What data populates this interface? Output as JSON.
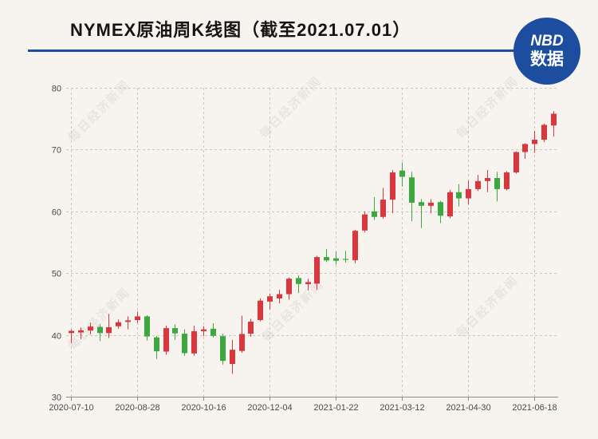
{
  "colors": {
    "background": "#f7f3ee",
    "brand_blue": "#1c4d9e",
    "up_candle": "#d9363e",
    "down_candle": "#3da83f",
    "grid": "#cdc7bf",
    "axis": "#8e8a85"
  },
  "logo": {
    "line1": "NBD",
    "line2": "数据"
  },
  "watermark": "每日经济新闻",
  "chart_data": {
    "type": "bar",
    "variant": "candlestick",
    "title": "NYMEX原油周K线图（截至2021.07.01）",
    "x": [
      "2020-07-10",
      "2020-07-17",
      "2020-07-24",
      "2020-07-31",
      "2020-08-07",
      "2020-08-14",
      "2020-08-21",
      "2020-08-28",
      "2020-09-04",
      "2020-09-11",
      "2020-09-18",
      "2020-09-25",
      "2020-10-02",
      "2020-10-09",
      "2020-10-16",
      "2020-10-23",
      "2020-10-30",
      "2020-11-06",
      "2020-11-13",
      "2020-11-20",
      "2020-11-27",
      "2020-12-04",
      "2020-12-11",
      "2020-12-18",
      "2020-12-24",
      "2020-12-31",
      "2021-01-08",
      "2021-01-15",
      "2021-01-22",
      "2021-01-29",
      "2021-02-05",
      "2021-02-12",
      "2021-02-19",
      "2021-02-26",
      "2021-03-05",
      "2021-03-12",
      "2021-03-19",
      "2021-03-26",
      "2021-04-01",
      "2021-04-09",
      "2021-04-16",
      "2021-04-23",
      "2021-04-30",
      "2021-05-07",
      "2021-05-14",
      "2021-05-21",
      "2021-05-28",
      "2021-06-04",
      "2021-06-11",
      "2021-06-18",
      "2021-06-25",
      "2021-07-01"
    ],
    "open": [
      40.3,
      40.4,
      40.7,
      41.3,
      40.3,
      41.4,
      42.1,
      42.4,
      43.0,
      39.6,
      37.3,
      41.1,
      40.2,
      37.0,
      40.6,
      41.0,
      39.8,
      35.3,
      37.4,
      40.2,
      42.4,
      45.4,
      45.9,
      46.6,
      49.2,
      48.2,
      48.3,
      52.6,
      52.4,
      52.3,
      52.1,
      56.9,
      60.0,
      59.1,
      61.9,
      66.6,
      65.5,
      61.5,
      60.9,
      61.5,
      59.2,
      63.1,
      62.1,
      63.6,
      64.9,
      65.4,
      63.6,
      66.3,
      69.6,
      70.9,
      71.6,
      73.9
    ],
    "high": [
      40.9,
      41.2,
      42.0,
      41.7,
      43.4,
      42.5,
      43.0,
      43.8,
      43.2,
      39.8,
      41.5,
      41.7,
      40.9,
      41.5,
      41.4,
      41.9,
      40.2,
      39.2,
      43.1,
      42.6,
      45.9,
      46.7,
      47.3,
      49.3,
      49.6,
      49.1,
      52.8,
      53.9,
      53.5,
      53.6,
      57.0,
      60.0,
      62.3,
      63.8,
      66.7,
      67.9,
      66.4,
      62.0,
      62.0,
      61.7,
      63.5,
      64.4,
      65.0,
      65.9,
      66.7,
      66.4,
      66.5,
      69.7,
      71.0,
      73.0,
      74.2,
      76.2
    ],
    "low": [
      38.7,
      39.3,
      40.1,
      39.0,
      39.5,
      41.0,
      40.9,
      41.9,
      39.1,
      36.1,
      36.8,
      39.2,
      36.6,
      36.6,
      39.8,
      39.6,
      35.2,
      33.7,
      37.1,
      39.7,
      42.2,
      44.1,
      45.1,
      45.7,
      46.8,
      47.2,
      47.3,
      51.8,
      51.4,
      51.7,
      51.6,
      56.6,
      58.6,
      58.8,
      59.7,
      64.0,
      58.4,
      57.3,
      59.7,
      58.1,
      58.9,
      60.8,
      61.1,
      63.3,
      63.1,
      61.6,
      63.4,
      66.1,
      68.5,
      69.5,
      71.2,
      72.1
    ],
    "close": [
      40.65,
      40.75,
      41.35,
      40.3,
      41.25,
      42.05,
      42.35,
      43.0,
      39.75,
      37.35,
      41.1,
      40.25,
      37.05,
      40.6,
      40.9,
      39.85,
      35.8,
      37.6,
      40.15,
      42.15,
      45.55,
      46.25,
      46.6,
      49.1,
      48.25,
      48.55,
      52.6,
      52.05,
      52.0,
      52.15,
      56.85,
      59.5,
      59.1,
      61.9,
      66.3,
      65.6,
      61.4,
      60.9,
      61.4,
      59.3,
      63.1,
      62.1,
      63.6,
      64.9,
      65.4,
      63.6,
      66.3,
      69.6,
      70.9,
      71.6,
      74.0,
      75.8
    ],
    "x_tick_labels": [
      "2020-07-10",
      "2020-08-28",
      "2020-10-16",
      "2020-12-04",
      "2021-01-22",
      "2021-03-12",
      "2021-04-30",
      "2021-06-18"
    ],
    "y_ticks": [
      30,
      40,
      50,
      60,
      70,
      80
    ],
    "ylim": [
      30,
      80
    ],
    "grid": true
  }
}
